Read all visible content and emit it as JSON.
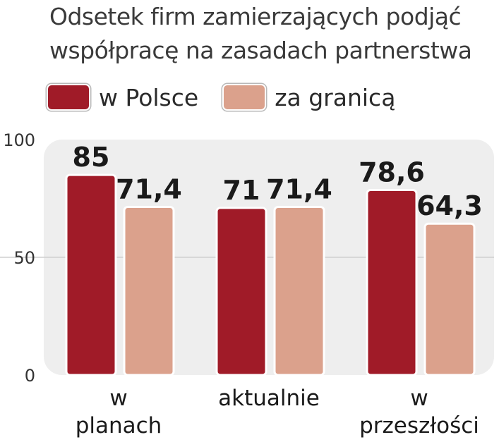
{
  "title_line1": "Odsetek firm zamierzających podjąć",
  "title_line2": "współpracę na zasadach partnerstwa",
  "chart_data": {
    "type": "bar",
    "title": "Odsetek firm zamierzających podjąć współpracę na zasadach partnerstwa",
    "categories": [
      [
        "w",
        "planach"
      ],
      [
        "aktualnie"
      ],
      [
        "w",
        "przeszłości"
      ]
    ],
    "series": [
      {
        "name": "w Polsce",
        "values": [
          85,
          71,
          78.6
        ],
        "labels": [
          "85",
          "71",
          "78,6"
        ],
        "color": "#a01b28"
      },
      {
        "name": "za granicą",
        "values": [
          71.4,
          71.4,
          64.3
        ],
        "labels": [
          "71,4",
          "71,4",
          "64,3"
        ],
        "color": "#dba18c"
      }
    ],
    "yticks": [
      "0",
      "50",
      "100"
    ],
    "ylim": [
      0,
      100
    ],
    "grid": true,
    "legend": "top"
  }
}
